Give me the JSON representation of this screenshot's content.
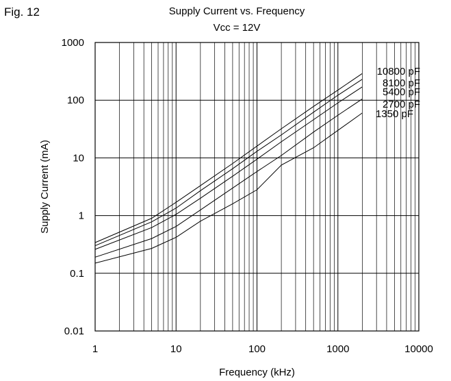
{
  "figure_label": "Fig. 12",
  "chart_data": {
    "type": "line",
    "title": "Supply Current vs. Frequency",
    "subtitle": "Vcc = 12V",
    "xlabel": "Frequency (kHz)",
    "ylabel": "Supply Current (mA)",
    "xscale": "log",
    "yscale": "log",
    "xlim": [
      1,
      10000
    ],
    "ylim": [
      0.01,
      1000
    ],
    "xticks": [
      "1",
      "10",
      "100",
      "1000",
      "10000"
    ],
    "yticks": [
      "0.01",
      "0.1",
      "1",
      "10",
      "100",
      "1000"
    ],
    "grid": true,
    "series": [
      {
        "name": "10800 pF",
        "x": [
          1,
          5,
          10,
          20,
          50,
          100,
          200,
          500,
          1000,
          2000
        ],
        "y": [
          0.34,
          0.9,
          1.7,
          3.3,
          8,
          16,
          32,
          78,
          150,
          290
        ]
      },
      {
        "name": "8100 pF",
        "x": [
          1,
          5,
          10,
          20,
          50,
          100,
          200,
          500,
          1000,
          2000
        ],
        "y": [
          0.3,
          0.78,
          1.35,
          2.7,
          6.5,
          13,
          25,
          62,
          122,
          230
        ]
      },
      {
        "name": "5400 pF",
        "x": [
          1,
          5,
          10,
          20,
          50,
          100,
          200,
          500,
          1000,
          2000
        ],
        "y": [
          0.26,
          0.62,
          1.05,
          2.0,
          4.8,
          9.5,
          19,
          46,
          90,
          170
        ]
      },
      {
        "name": "2700 pF",
        "x": [
          1,
          5,
          10,
          20,
          50,
          100,
          200,
          500,
          1000,
          2000
        ],
        "y": [
          0.19,
          0.4,
          0.65,
          1.25,
          3.0,
          5.8,
          11,
          28,
          55,
          105
        ]
      },
      {
        "name": "1350 pF",
        "x": [
          1,
          5,
          10,
          20,
          50,
          100,
          200,
          500,
          1000,
          2000
        ],
        "y": [
          0.15,
          0.27,
          0.42,
          0.8,
          1.6,
          2.8,
          7.5,
          15,
          30,
          60
        ]
      }
    ]
  }
}
